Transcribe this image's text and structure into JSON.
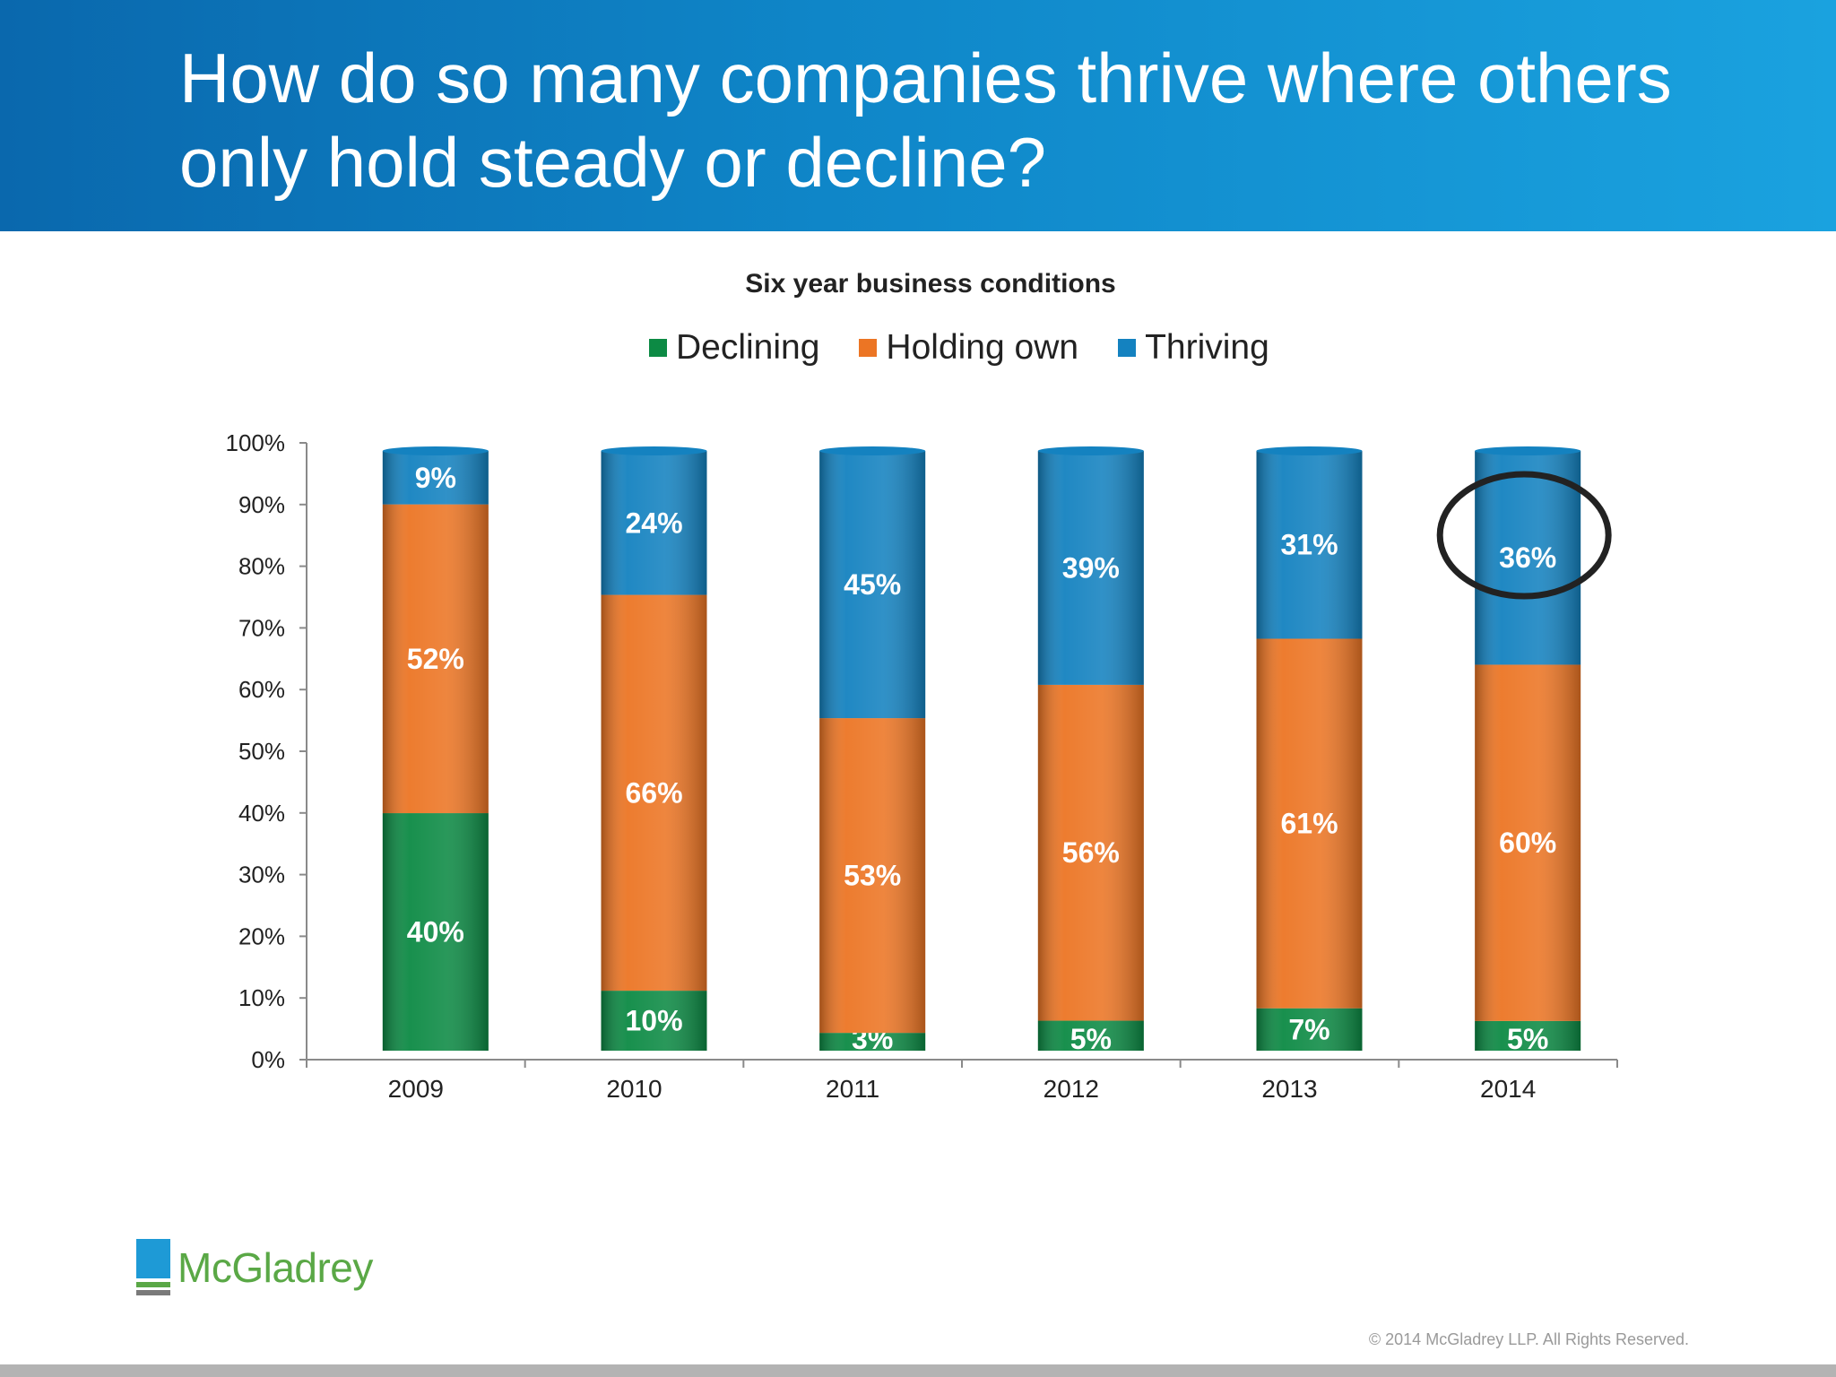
{
  "slide": {
    "title_line1": "How do so many companies thrive where others",
    "title_line2": "only hold steady or decline?",
    "copyright": "© 2014 McGladrey LLP. All Rights Reserved.",
    "logo_text": "McGladrey"
  },
  "colors": {
    "declining": "#0c8a44",
    "holding_own": "#ec7524",
    "thriving": "#1482c0",
    "header_band": "#0f86c8",
    "highlight_circle": "#222222"
  },
  "chart_data": {
    "type": "bar",
    "stacked": true,
    "title": "Six year business conditions",
    "xlabel": "",
    "ylabel": "",
    "ylim": [
      0,
      100
    ],
    "yticks": [
      "0%",
      "10%",
      "20%",
      "30%",
      "40%",
      "50%",
      "60%",
      "70%",
      "80%",
      "90%",
      "100%"
    ],
    "categories": [
      "2009",
      "2010",
      "2011",
      "2012",
      "2013",
      "2014"
    ],
    "legend_position": "top-center",
    "grid": false,
    "series": [
      {
        "name": "Declining",
        "values": [
          40,
          10,
          3,
          5,
          7,
          5
        ],
        "labels": [
          "40%",
          "10%",
          "3%",
          "5%",
          "7%",
          "5%"
        ]
      },
      {
        "name": "Holding own",
        "values": [
          52,
          66,
          53,
          56,
          61,
          60
        ],
        "labels": [
          "52%",
          "66%",
          "53%",
          "56%",
          "61%",
          "60%"
        ]
      },
      {
        "name": "Thriving",
        "values": [
          9,
          24,
          45,
          39,
          31,
          36
        ],
        "labels": [
          "9%",
          "24%",
          "45%",
          "39%",
          "31%",
          "36%"
        ]
      }
    ],
    "highlight": {
      "category": "2014",
      "series": "Thriving"
    }
  }
}
